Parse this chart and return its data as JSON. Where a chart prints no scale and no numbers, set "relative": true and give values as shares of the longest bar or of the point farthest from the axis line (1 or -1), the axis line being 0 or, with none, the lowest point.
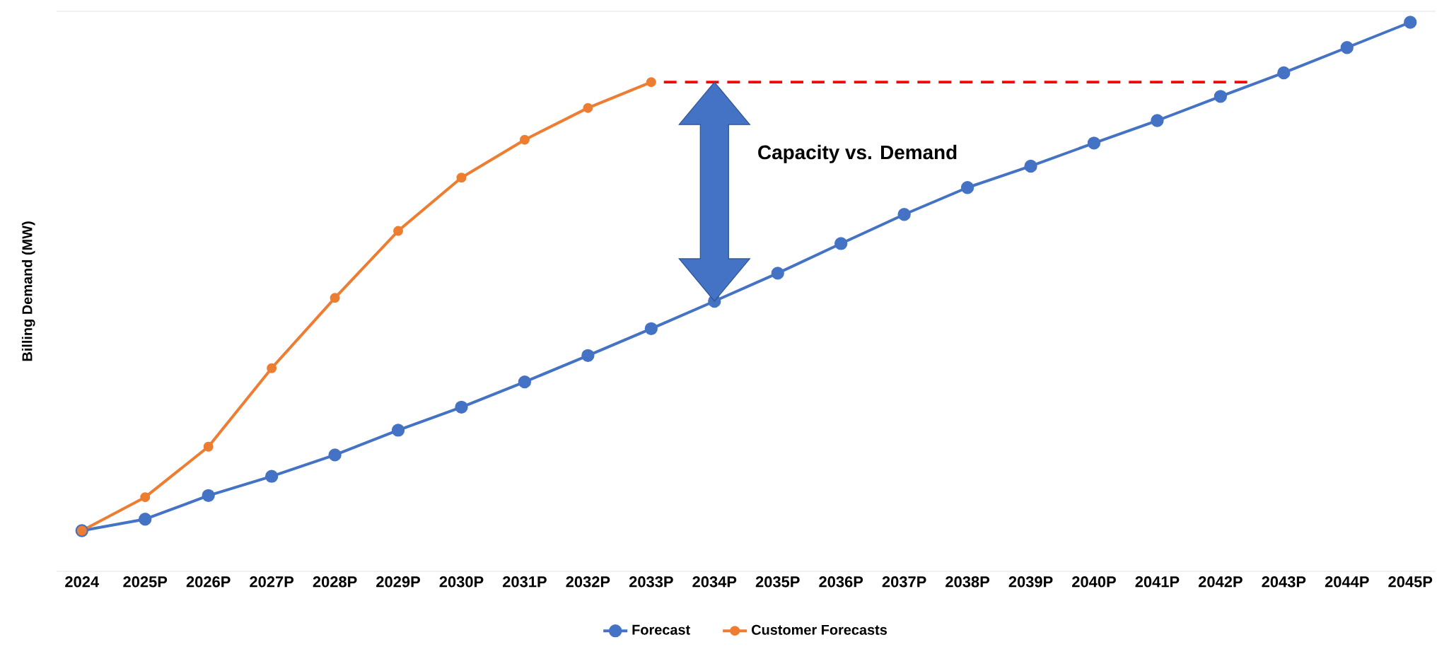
{
  "chart_data": {
    "type": "line",
    "ylabel": "Billing Demand (MW)",
    "relative": true,
    "categories": [
      "2024",
      "2025P",
      "2026P",
      "2027P",
      "2028P",
      "2029P",
      "2030P",
      "2031P",
      "2032P",
      "2033P",
      "2034P",
      "2035P",
      "2036P",
      "2037P",
      "2038P",
      "2039P",
      "2040P",
      "2041P",
      "2042P",
      "2043P",
      "2044P",
      "2045P"
    ],
    "series": [
      {
        "name": "Forecast",
        "color": "#4472c4",
        "values": [
          0.074,
          0.095,
          0.138,
          0.173,
          0.212,
          0.257,
          0.299,
          0.345,
          0.393,
          0.442,
          0.492,
          0.543,
          0.597,
          0.65,
          0.699,
          0.738,
          0.78,
          0.821,
          0.865,
          0.908,
          0.954,
          1
        ]
      },
      {
        "name": "Customer Forecasts",
        "color": "#ed7d31",
        "values": [
          0.074,
          0.135,
          0.227,
          0.37,
          0.498,
          0.62,
          0.717,
          0.786,
          0.844,
          0.891,
          null,
          null,
          null,
          null,
          null,
          null,
          null,
          null,
          null,
          null,
          null,
          null
        ]
      }
    ],
    "ref_lines": [
      {
        "axis": "y",
        "value": 0.891,
        "color": "#ff0000",
        "line_style": "dashed"
      }
    ],
    "annotations": [
      "Capacity vs. Demand"
    ],
    "marker": "circle",
    "line_style": "solid",
    "legend": "bottom"
  }
}
